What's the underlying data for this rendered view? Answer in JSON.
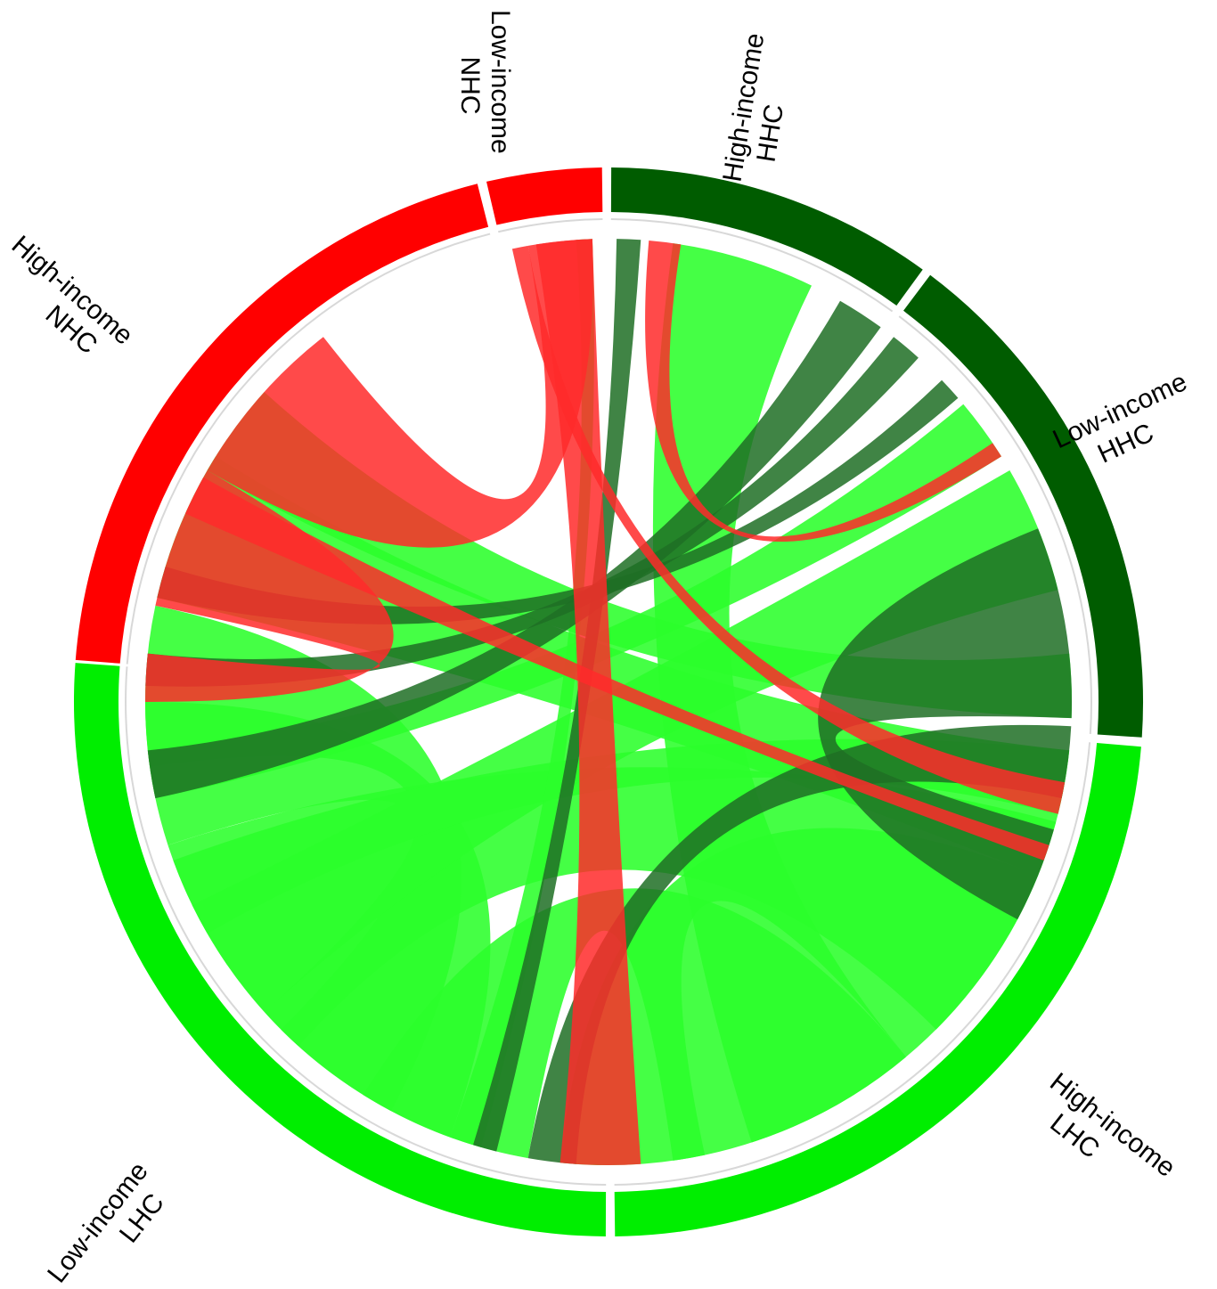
{
  "colors": {
    "nhc": "#ff0000",
    "nhc_ribbon": "#ff2a2a",
    "hhc": "#005c00",
    "hhc_ribbon": "#1f6e24",
    "lhc": "#00ee00",
    "lhc_ribbon": "#2bff2b",
    "track": "#d8d8d8"
  },
  "segments": [
    {
      "id": "hi-nhc",
      "line1": "High-income",
      "line2": "NHC",
      "color": "nhc"
    },
    {
      "id": "lo-nhc",
      "line1": "Low-income",
      "line2": "NHC",
      "color": "nhc"
    },
    {
      "id": "hi-hhc",
      "line1": "High-income",
      "line2": "HHC",
      "color": "hhc"
    },
    {
      "id": "lo-hhc",
      "line1": "Low-income",
      "line2": "HHC",
      "color": "hhc"
    },
    {
      "id": "hi-lhc",
      "line1": "High-income",
      "line2": "LHC",
      "color": "lhc"
    },
    {
      "id": "lo-lhc",
      "line1": "Low-income",
      "line2": "LHC",
      "color": "lhc"
    }
  ]
}
